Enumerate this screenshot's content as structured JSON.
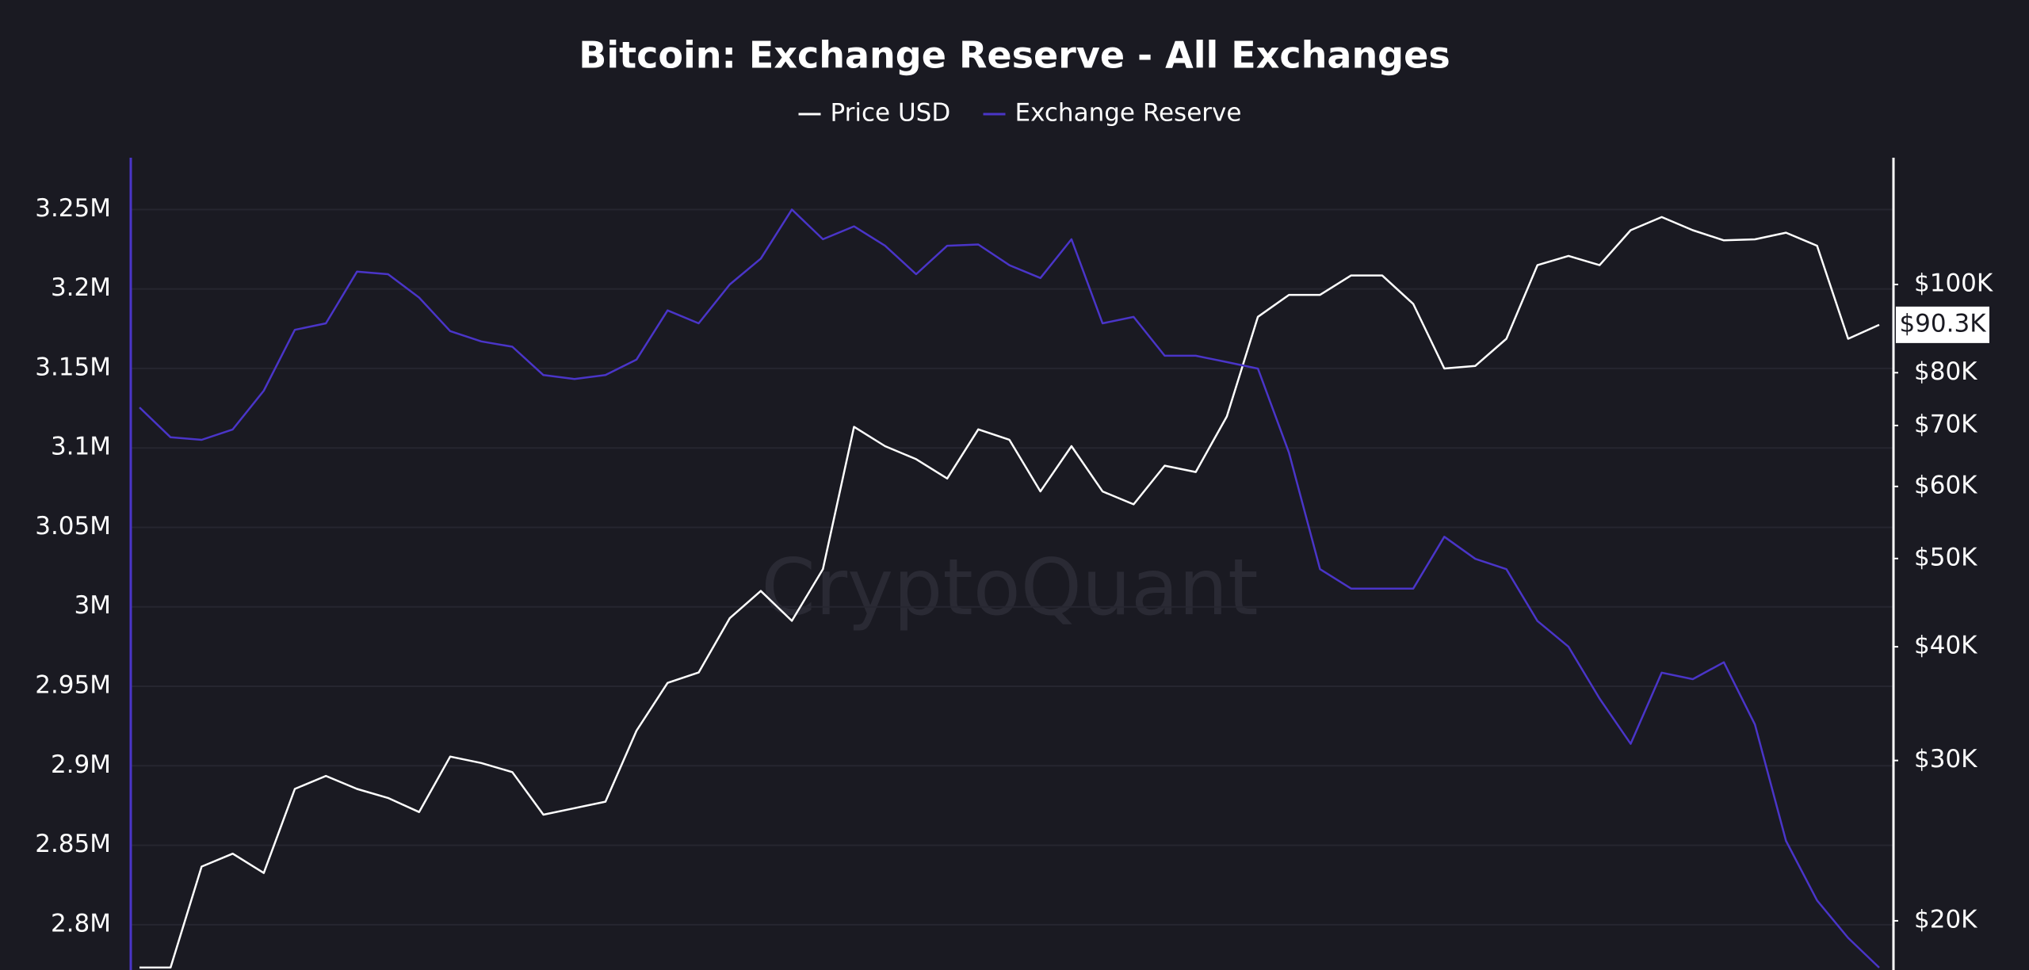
{
  "chart_data": {
    "type": "line",
    "title": "Bitcoin: Exchange Reserve - All Exchanges",
    "watermark": "CryptoQuant",
    "categories": [
      null,
      null,
      null,
      null,
      null,
      null,
      null,
      null,
      null,
      null,
      null,
      null,
      null,
      null,
      null,
      null,
      null,
      null,
      null,
      null,
      null,
      null,
      null,
      null,
      null,
      null,
      null,
      null,
      null,
      null,
      null,
      null,
      null,
      null,
      null,
      null,
      null,
      null,
      null,
      null,
      null,
      null,
      null,
      null,
      null,
      null,
      null,
      null,
      null,
      null,
      null,
      null,
      null,
      null,
      null,
      null,
      null
    ],
    "series": [
      {
        "name": "Price USD",
        "color": "#ffffff",
        "axis": "y2",
        "values": [
          17770,
          17770,
          22940,
          23700,
          22570,
          27920,
          28850,
          27920,
          27290,
          26330,
          30300,
          29810,
          29130,
          26160,
          26590,
          27030,
          32350,
          36510,
          37480,
          42990,
          46060,
          42710,
          48680,
          69770,
          66430,
          64290,
          61220,
          69320,
          67520,
          59250,
          66430,
          59250,
          57340,
          63240,
          62230,
          71620,
          92150,
          97410,
          97410,
          102300,
          102300,
          95210,
          80850,
          81390,
          87160,
          105000,
          107500,
          105000,
          114700,
          118600,
          114700,
          111800,
          112100,
          114000,
          110300,
          87160,
          90300
        ]
      },
      {
        "name": "Exchange Reserve",
        "color": "#4a35c8",
        "axis": "y",
        "values": [
          3125500,
          3106700,
          3105100,
          3111600,
          3136000,
          3174300,
          3178400,
          3210900,
          3209300,
          3194600,
          3173500,
          3167000,
          3163700,
          3145800,
          3143400,
          3145800,
          3155600,
          3186500,
          3178400,
          3202800,
          3219100,
          3250000,
          3231300,
          3239400,
          3227200,
          3209300,
          3227200,
          3228000,
          3215000,
          3206900,
          3231300,
          3178400,
          3182400,
          3158000,
          3158000,
          3154000,
          3149900,
          3097000,
          3023700,
          3011500,
          3011500,
          3011500,
          3044100,
          3030200,
          3023700,
          2991100,
          2974900,
          2942300,
          2913800,
          2958600,
          2954500,
          2965100,
          2926000,
          2852800,
          2815300,
          2791700,
          2773000
        ]
      }
    ],
    "ylim": [
      2771500,
      3282600
    ],
    "yticks": [
      {
        "value": 2800000,
        "label": "2.8M"
      },
      {
        "value": 2850000,
        "label": "2.85M"
      },
      {
        "value": 2900000,
        "label": "2.9M"
      },
      {
        "value": 2950000,
        "label": "2.95M"
      },
      {
        "value": 3000000,
        "label": "3M"
      },
      {
        "value": 3050000,
        "label": "3.05M"
      },
      {
        "value": 3100000,
        "label": "3.1M"
      },
      {
        "value": 3150000,
        "label": "3.15M"
      },
      {
        "value": 3200000,
        "label": "3.2M"
      },
      {
        "value": 3250000,
        "label": "3.25M"
      }
    ],
    "y2lim": [
      17660,
      137800
    ],
    "y2log": true,
    "y2ticks": [
      {
        "value": 20000,
        "label": "$20K"
      },
      {
        "value": 30000,
        "label": "$30K"
      },
      {
        "value": 40000,
        "label": "$40K"
      },
      {
        "value": 50000,
        "label": "$50K"
      },
      {
        "value": 60000,
        "label": "$60K"
      },
      {
        "value": 70000,
        "label": "$70K"
      },
      {
        "value": 80000,
        "label": "$80K"
      },
      {
        "value": 100000,
        "label": "$100K"
      }
    ],
    "annotations": [
      {
        "text": "$90.3K",
        "value": 90300,
        "axis": "y2"
      }
    ],
    "grid": true,
    "legend": "top"
  }
}
